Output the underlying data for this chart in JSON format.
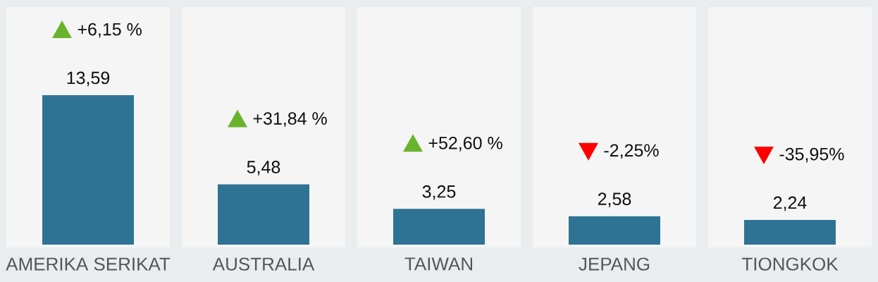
{
  "chart_data": {
    "type": "bar",
    "categories": [
      "AMERIKA SERIKAT",
      "AUSTRALIA",
      "TAIWAN",
      "JEPANG",
      "TIONGKOK"
    ],
    "values": [
      13.59,
      5.48,
      3.25,
      2.58,
      2.24
    ],
    "color": "#2e7394",
    "value_labels": [
      "13,59",
      "5,48",
      "3,25",
      "2,58",
      "2,24"
    ],
    "annotations": [
      "+6,15 %",
      "+31,84 %",
      "+52,60 %",
      "-2,25%",
      "-35,95%"
    ]
  }
}
